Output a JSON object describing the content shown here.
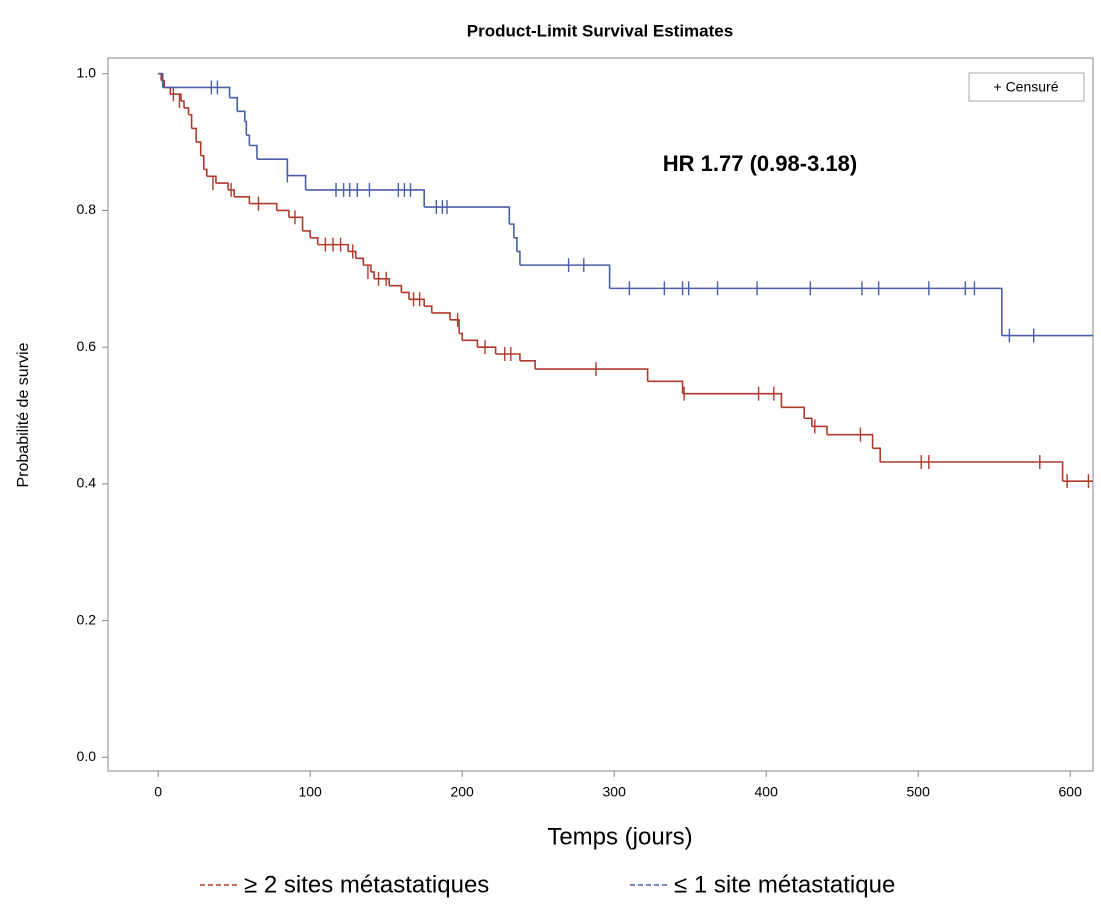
{
  "chart_data": {
    "type": "step",
    "title": "Product-Limit Survival Estimates",
    "x_label": "Temps (jours)",
    "y_label": "Probabilité de survie",
    "annotation": "HR 1.77 (0.98-3.18)",
    "censor_legend": "+ Censuré",
    "xlim": [
      -33,
      615
    ],
    "ylim": [
      -0.02,
      1.023
    ],
    "xticks": [
      0,
      100,
      200,
      300,
      400,
      500,
      600
    ],
    "yticks": [
      {
        "value": 0,
        "label": "0.0"
      },
      0.2,
      0.4,
      0.6,
      0.8,
      {
        "value": 1,
        "label": "1.0"
      }
    ],
    "series": [
      {
        "name": "≥ 2 sites métastatiques",
        "color": "#b03a2e",
        "x": [
          0,
          2,
          4,
          8,
          15,
          17,
          20,
          22,
          25,
          28,
          30,
          32,
          38,
          46,
          50,
          60,
          78,
          86,
          95,
          100,
          105,
          125,
          130,
          135,
          140,
          142,
          152,
          160,
          165,
          175,
          180,
          192,
          198,
          200,
          210,
          222,
          238,
          248,
          322,
          345,
          410,
          425,
          430,
          440,
          470,
          475,
          595
        ],
        "values": [
          1,
          0.99,
          0.98,
          0.97,
          0.96,
          0.95,
          0.94,
          0.92,
          0.9,
          0.88,
          0.86,
          0.85,
          0.84,
          0.83,
          0.82,
          0.81,
          0.8,
          0.79,
          0.77,
          0.76,
          0.75,
          0.74,
          0.73,
          0.72,
          0.71,
          0.7,
          0.69,
          0.68,
          0.67,
          0.66,
          0.65,
          0.64,
          0.62,
          0.61,
          0.6,
          0.59,
          0.58,
          0.568,
          0.55,
          0.532,
          0.512,
          0.496,
          0.484,
          0.472,
          0.452,
          0.432,
          0.404
        ],
        "censor_x": [
          10,
          14,
          36,
          48,
          66,
          90,
          110,
          115,
          120,
          128,
          138,
          145,
          150,
          168,
          172,
          197,
          215,
          228,
          232,
          288,
          346,
          395,
          405,
          432,
          462,
          502,
          507,
          580,
          598,
          612
        ],
        "censor_values": [
          0.97,
          0.96,
          0.84,
          0.83,
          0.81,
          0.79,
          0.75,
          0.75,
          0.75,
          0.74,
          0.71,
          0.7,
          0.7,
          0.67,
          0.67,
          0.64,
          0.6,
          0.59,
          0.59,
          0.568,
          0.532,
          0.532,
          0.532,
          0.484,
          0.472,
          0.432,
          0.432,
          0.432,
          0.404,
          0.404
        ]
      },
      {
        "name": "≤ 1 site métastatique",
        "color": "#4a5fa8",
        "x": [
          0,
          3,
          47,
          52,
          57,
          58,
          60,
          65,
          85,
          97,
          175,
          231,
          234,
          236,
          238,
          297,
          555
        ],
        "values": [
          1,
          0.98,
          0.965,
          0.945,
          0.93,
          0.91,
          0.895,
          0.875,
          0.851,
          0.83,
          0.805,
          0.78,
          0.76,
          0.74,
          0.72,
          0.686,
          0.617
        ],
        "censor_x": [
          35,
          39,
          85,
          117,
          122,
          126,
          131,
          139,
          158,
          162,
          166,
          183,
          187,
          190,
          270,
          280,
          310,
          333,
          345,
          349,
          368,
          394,
          429,
          463,
          474,
          507,
          531,
          537,
          560,
          576
        ],
        "censor_values": [
          0.98,
          0.98,
          0.851,
          0.83,
          0.83,
          0.83,
          0.83,
          0.83,
          0.83,
          0.83,
          0.83,
          0.805,
          0.805,
          0.805,
          0.72,
          0.72,
          0.686,
          0.686,
          0.686,
          0.686,
          0.686,
          0.686,
          0.686,
          0.686,
          0.686,
          0.686,
          0.686,
          0.686,
          0.617,
          0.617
        ]
      }
    ]
  }
}
